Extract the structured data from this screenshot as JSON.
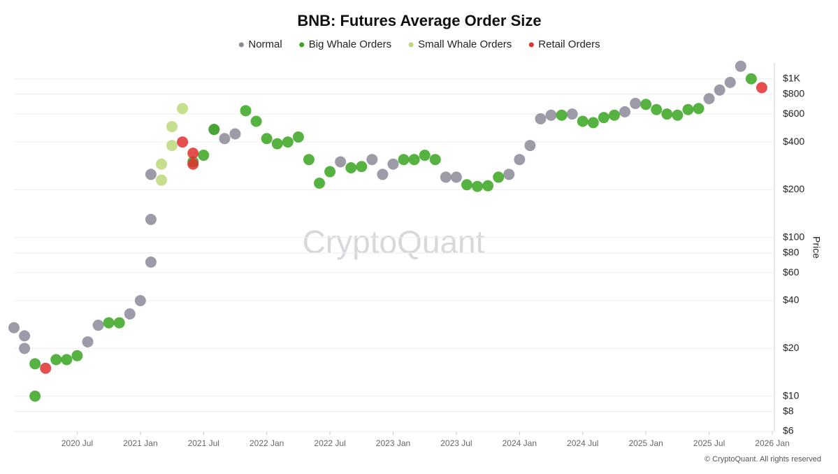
{
  "chart_data": {
    "type": "scatter",
    "title": "BNB: Futures Average Order Size",
    "y_label": "Price",
    "watermark": "CryptoQuant",
    "credit": "© CryptoQuant. All rights reserved",
    "log_y": true,
    "grid": true,
    "legend": "top",
    "xlim": [
      "2020-01",
      "2026-01"
    ],
    "xticks": [
      {
        "value": "2020-07",
        "label": "2020 Jul"
      },
      {
        "value": "2021-01",
        "label": "2021 Jan"
      },
      {
        "value": "2021-07",
        "label": "2021 Jul"
      },
      {
        "value": "2022-01",
        "label": "2022 Jan"
      },
      {
        "value": "2022-07",
        "label": "2022 Jul"
      },
      {
        "value": "2023-01",
        "label": "2023 Jan"
      },
      {
        "value": "2023-07",
        "label": "2023 Jul"
      },
      {
        "value": "2024-01",
        "label": "2024 Jan"
      },
      {
        "value": "2024-07",
        "label": "2024 Jul"
      },
      {
        "value": "2025-01",
        "label": "2025 Jan"
      },
      {
        "value": "2025-07",
        "label": "2025 Jul"
      },
      {
        "value": "2026-01",
        "label": "2026 Jan"
      }
    ],
    "ylim": [
      6,
      1260
    ],
    "yticks": [
      {
        "value": 6,
        "label": "$6"
      },
      {
        "value": 8,
        "label": "$8"
      },
      {
        "value": 10,
        "label": "$10"
      },
      {
        "value": 20,
        "label": "$20"
      },
      {
        "value": 40,
        "label": "$40"
      },
      {
        "value": 60,
        "label": "$60"
      },
      {
        "value": 80,
        "label": "$80"
      },
      {
        "value": 100,
        "label": "$100"
      },
      {
        "value": 200,
        "label": "$200"
      },
      {
        "value": 400,
        "label": "$400"
      },
      {
        "value": 600,
        "label": "$600"
      },
      {
        "value": 800,
        "label": "$800"
      },
      {
        "value": 1000,
        "label": "$1K"
      }
    ],
    "series": [
      {
        "name": "Normal",
        "color": "#8c8a99",
        "x": [
          "2020-01",
          "2020-02",
          "2020-02",
          "2020-08",
          "2020-09",
          "2020-12",
          "2021-01",
          "2021-02",
          "2021-02",
          "2021-02",
          "2021-08",
          "2021-09",
          "2021-10",
          "2022-08",
          "2022-11",
          "2022-12",
          "2023-01",
          "2023-06",
          "2023-07",
          "2023-12",
          "2024-01",
          "2024-02",
          "2024-03",
          "2024-04",
          "2024-06",
          "2024-11",
          "2024-12",
          "2025-07",
          "2025-08",
          "2025-09",
          "2025-10"
        ],
        "values": [
          27,
          24,
          20,
          22,
          28,
          33,
          40,
          70,
          130,
          250,
          480,
          420,
          450,
          300,
          310,
          250,
          290,
          240,
          240,
          250,
          310,
          380,
          560,
          590,
          600,
          620,
          700,
          750,
          850,
          950,
          1200
        ]
      },
      {
        "name": "Big Whale Orders",
        "color": "#3aa620",
        "x": [
          "2020-03",
          "2020-03",
          "2020-05",
          "2020-06",
          "2020-07",
          "2020-10",
          "2020-11",
          "2021-06",
          "2021-07",
          "2021-08",
          "2021-11",
          "2021-12",
          "2022-01",
          "2022-02",
          "2022-03",
          "2022-04",
          "2022-05",
          "2022-06",
          "2022-07",
          "2022-09",
          "2022-10",
          "2023-02",
          "2023-03",
          "2023-04",
          "2023-05",
          "2023-08",
          "2023-09",
          "2023-10",
          "2023-11",
          "2024-05",
          "2024-07",
          "2024-08",
          "2024-09",
          "2024-10",
          "2025-01",
          "2025-02",
          "2025-03",
          "2025-04",
          "2025-05",
          "2025-06",
          "2025-11"
        ],
        "values": [
          16,
          10,
          17,
          17,
          18,
          29,
          29,
          300,
          330,
          480,
          630,
          540,
          420,
          390,
          400,
          430,
          310,
          220,
          260,
          275,
          280,
          310,
          310,
          330,
          310,
          215,
          210,
          212,
          240,
          590,
          540,
          530,
          570,
          590,
          690,
          640,
          600,
          590,
          640,
          650,
          1000
        ]
      },
      {
        "name": "Small Whale Orders",
        "color": "#bcd97a",
        "x": [
          "2021-03",
          "2021-03",
          "2021-04",
          "2021-04",
          "2021-05"
        ],
        "values": [
          230,
          290,
          380,
          500,
          650
        ]
      },
      {
        "name": "Retail Orders",
        "color": "#e03030",
        "x": [
          "2020-04",
          "2021-05",
          "2021-06",
          "2021-06",
          "2025-12"
        ],
        "values": [
          15,
          400,
          340,
          290,
          880
        ]
      }
    ]
  }
}
